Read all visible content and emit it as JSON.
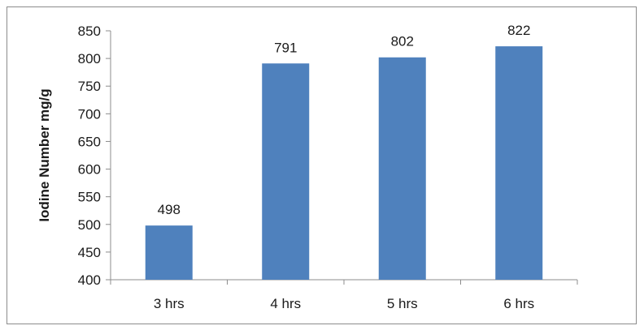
{
  "chart_data": {
    "type": "bar",
    "title": "",
    "xlabel": "",
    "ylabel": "Iodine Number mg/g",
    "categories": [
      "3 hrs",
      "4 hrs",
      "5 hrs",
      "6 hrs"
    ],
    "values": [
      498,
      791,
      802,
      822
    ],
    "data_labels": [
      "498",
      "791",
      "802",
      "822"
    ],
    "ylim": [
      400,
      850
    ],
    "yticks": [
      400,
      450,
      500,
      550,
      600,
      650,
      700,
      750,
      800,
      850
    ],
    "grid": false,
    "legend": "none",
    "bar_color": "#4f81bd"
  }
}
